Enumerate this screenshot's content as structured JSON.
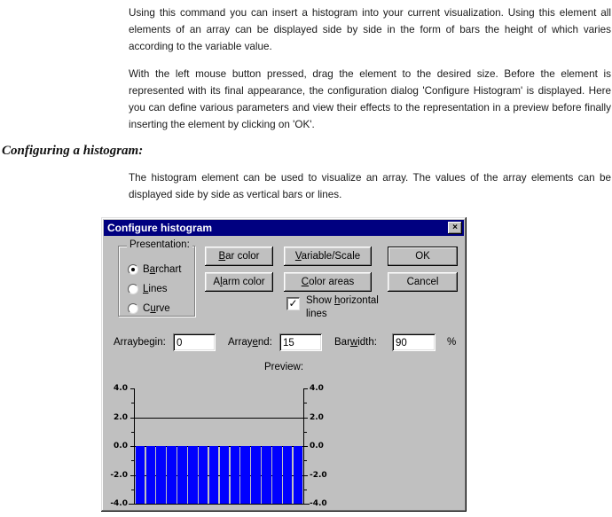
{
  "document": {
    "intro_paragraph_1": "Using this command you can insert a histogram into your current visualization. Using this element all elements of an array can be displayed side by side in the form of bars the height of which varies according to the variable value.",
    "intro_paragraph_2": "With the left mouse button pressed, drag the element to the desired size. Before the element is represented with its final appearance, the configuration dialog 'Configure Histogram' is displayed. Here you can define various parameters and view their effects to the representation in a preview before finally inserting the element by clicking on 'OK'.",
    "section_heading": "Configuring a histogram:",
    "section_paragraph": "The histogram element can be used to visualize an array. The values of the array elements can be displayed side by side as vertical bars or lines."
  },
  "dialog": {
    "title": "Configure histogram",
    "close_icon": "×",
    "titlebar_color": "#000080",
    "background_color": "#c0c0c0",
    "presentation": {
      "label": "Presentation:",
      "options": [
        {
          "pre": "B",
          "u": "a",
          "post": "rchart",
          "selected": true
        },
        {
          "pre": "",
          "u": "L",
          "post": "ines",
          "selected": false
        },
        {
          "pre": "C",
          "u": "u",
          "post": "rve",
          "selected": false
        }
      ]
    },
    "buttons": {
      "bar_color": {
        "pre": "",
        "u": "B",
        "post": "ar color"
      },
      "alarm_color": {
        "pre": "A",
        "u": "l",
        "post": "arm color"
      },
      "variable_scale": {
        "pre": "",
        "u": "V",
        "post": "ariable/Scale"
      },
      "color_areas": {
        "pre": "",
        "u": "C",
        "post": "olor areas"
      },
      "ok": "OK",
      "cancel": "Cancel"
    },
    "show_lines_checkbox": {
      "checked": true,
      "check_glyph": "✓",
      "line1": {
        "pre": "Show ",
        "u": "h",
        "post": "orizontal"
      },
      "line2": "lines"
    },
    "fields": {
      "arraybegin": {
        "label": "Arraybegin:",
        "value": "0"
      },
      "arrayend": {
        "pre": "Array",
        "u": "e",
        "post": "nd:",
        "value": "15"
      },
      "barwidth": {
        "pre": "Bar",
        "u": "w",
        "post": "idth:",
        "value": "90",
        "suffix": "%"
      }
    },
    "preview": {
      "label": "Preview:"
    }
  },
  "chart_data": {
    "type": "bar",
    "title": "Preview:",
    "ylim": [
      -4.0,
      4.0
    ],
    "yticks": [
      "4.0",
      "2.0",
      "0.0",
      "-2.0",
      "-4.0"
    ],
    "ytick_values": [
      4,
      2,
      0,
      -2,
      -4
    ],
    "minor_ticks": [
      3,
      1,
      -1,
      -3
    ],
    "gridlines": [
      2,
      0,
      -2
    ],
    "grid": true,
    "dual_axis_labels": true,
    "values": [
      -4,
      -4,
      -4,
      -4,
      -4,
      -4,
      -4,
      -4,
      -4,
      -4,
      -4,
      -4,
      -4,
      -4,
      -4,
      -4
    ],
    "bar_width_percent": 90,
    "bar_color": "#0000ff",
    "axis_color": "#000000",
    "background": "#c0c0c0"
  }
}
